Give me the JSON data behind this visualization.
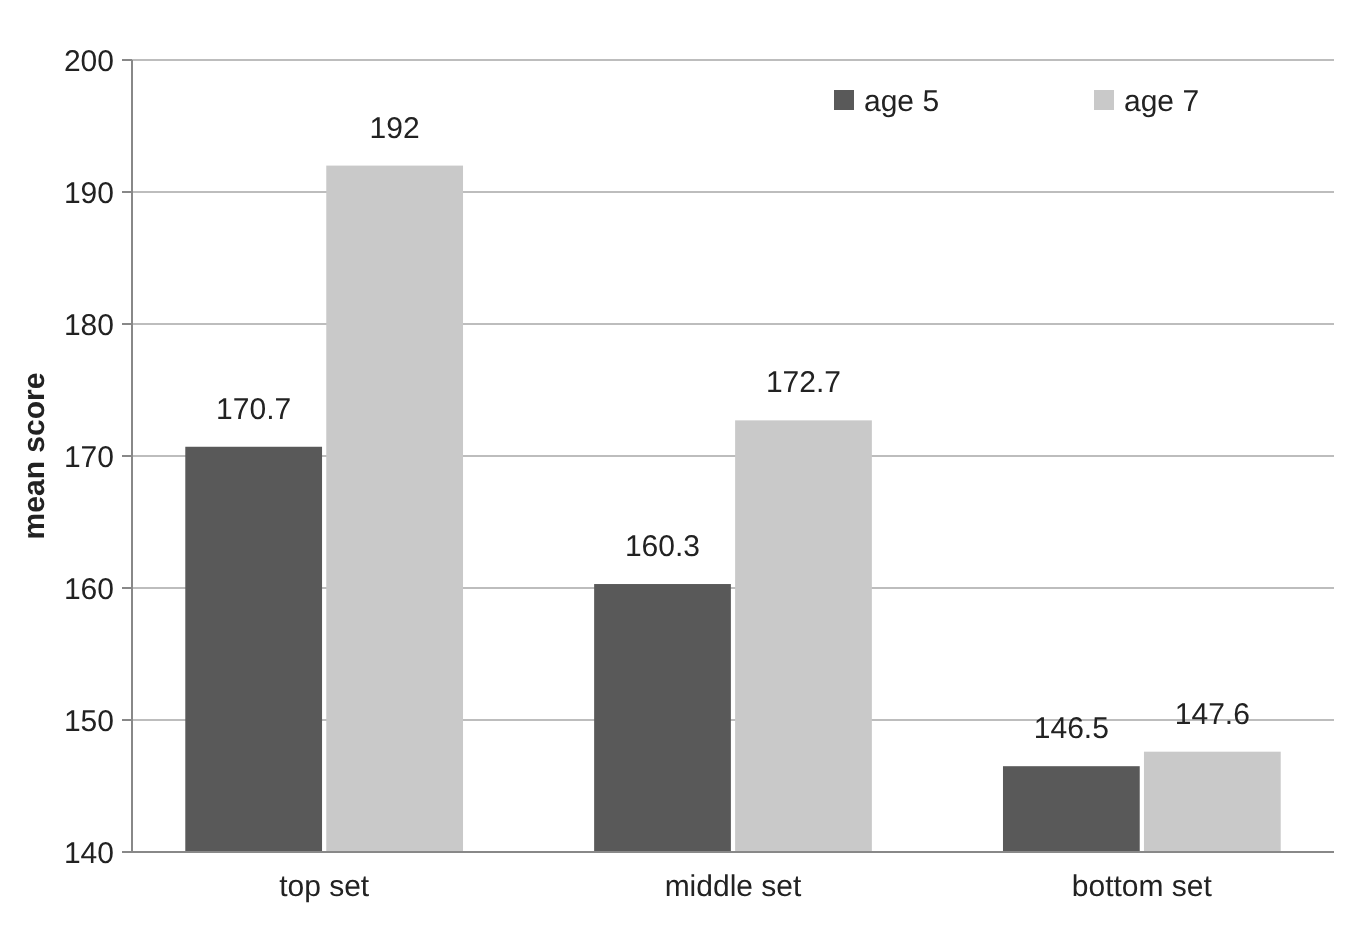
{
  "chart_data": {
    "type": "bar",
    "ylabel": "mean score",
    "categories": [
      "top set",
      "middle set",
      "bottom set"
    ],
    "series": [
      {
        "name": "age 5",
        "color": "#595959",
        "values": [
          170.7,
          160.3,
          146.5
        ]
      },
      {
        "name": "age 7",
        "color": "#c9c9c9",
        "values": [
          192,
          172.7,
          147.6
        ]
      }
    ],
    "ylim": [
      140,
      200
    ],
    "yticks": [
      140,
      150,
      160,
      170,
      180,
      190,
      200
    ],
    "grid": "y",
    "legend": "top right",
    "data_labels": true
  }
}
